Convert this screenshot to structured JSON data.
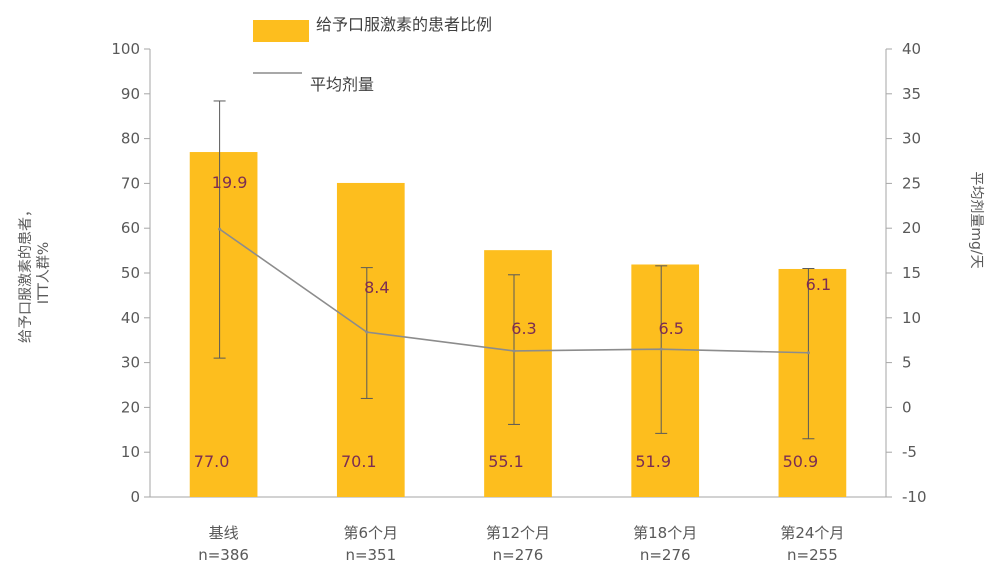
{
  "chart_data": {
    "type": "bar",
    "categories": [
      "基线",
      "第6个月",
      "第12个月",
      "第18个月",
      "第24个月"
    ],
    "category_n": [
      "n=386",
      "n=351",
      "n=276",
      "n=276",
      "n=255"
    ],
    "series": [
      {
        "name": "给予口服激素的患者比例",
        "type": "bar",
        "axis": "left",
        "color": "#FDBE1E",
        "values": [
          77.0,
          70.1,
          55.1,
          51.9,
          50.9
        ],
        "labels": [
          "77.0",
          "70.1",
          "55.1",
          "51.9",
          "50.9"
        ]
      },
      {
        "name": "平均剂量",
        "type": "line",
        "axis": "right",
        "color": "#8C8C8C",
        "values": [
          19.9,
          8.4,
          6.3,
          6.5,
          6.1
        ],
        "labels": [
          "19.9",
          "8.4",
          "6.3",
          "6.5",
          "6.1"
        ],
        "error_high": [
          34.2,
          15.6,
          14.8,
          15.8,
          15.5
        ],
        "error_low": [
          5.5,
          1.0,
          -1.9,
          -2.9,
          -3.5
        ]
      }
    ],
    "y_left": {
      "label": "给予口服激素的患者，ITT人群%",
      "label_lines": [
        "给予口服激素的患者，",
        "ITT人群%"
      ],
      "lim": [
        0,
        100
      ],
      "ticks": [
        "0",
        "10",
        "20",
        "30",
        "40",
        "50",
        "60",
        "70",
        "80",
        "90",
        "100"
      ]
    },
    "y_right": {
      "label": "平均剂量mg/天",
      "lim": [
        -10,
        40
      ],
      "ticks": [
        "-10",
        "-5",
        "0",
        "5",
        "10",
        "15",
        "20",
        "25",
        "30",
        "35",
        "40"
      ]
    },
    "legend_position": "top-center",
    "grid": false
  }
}
